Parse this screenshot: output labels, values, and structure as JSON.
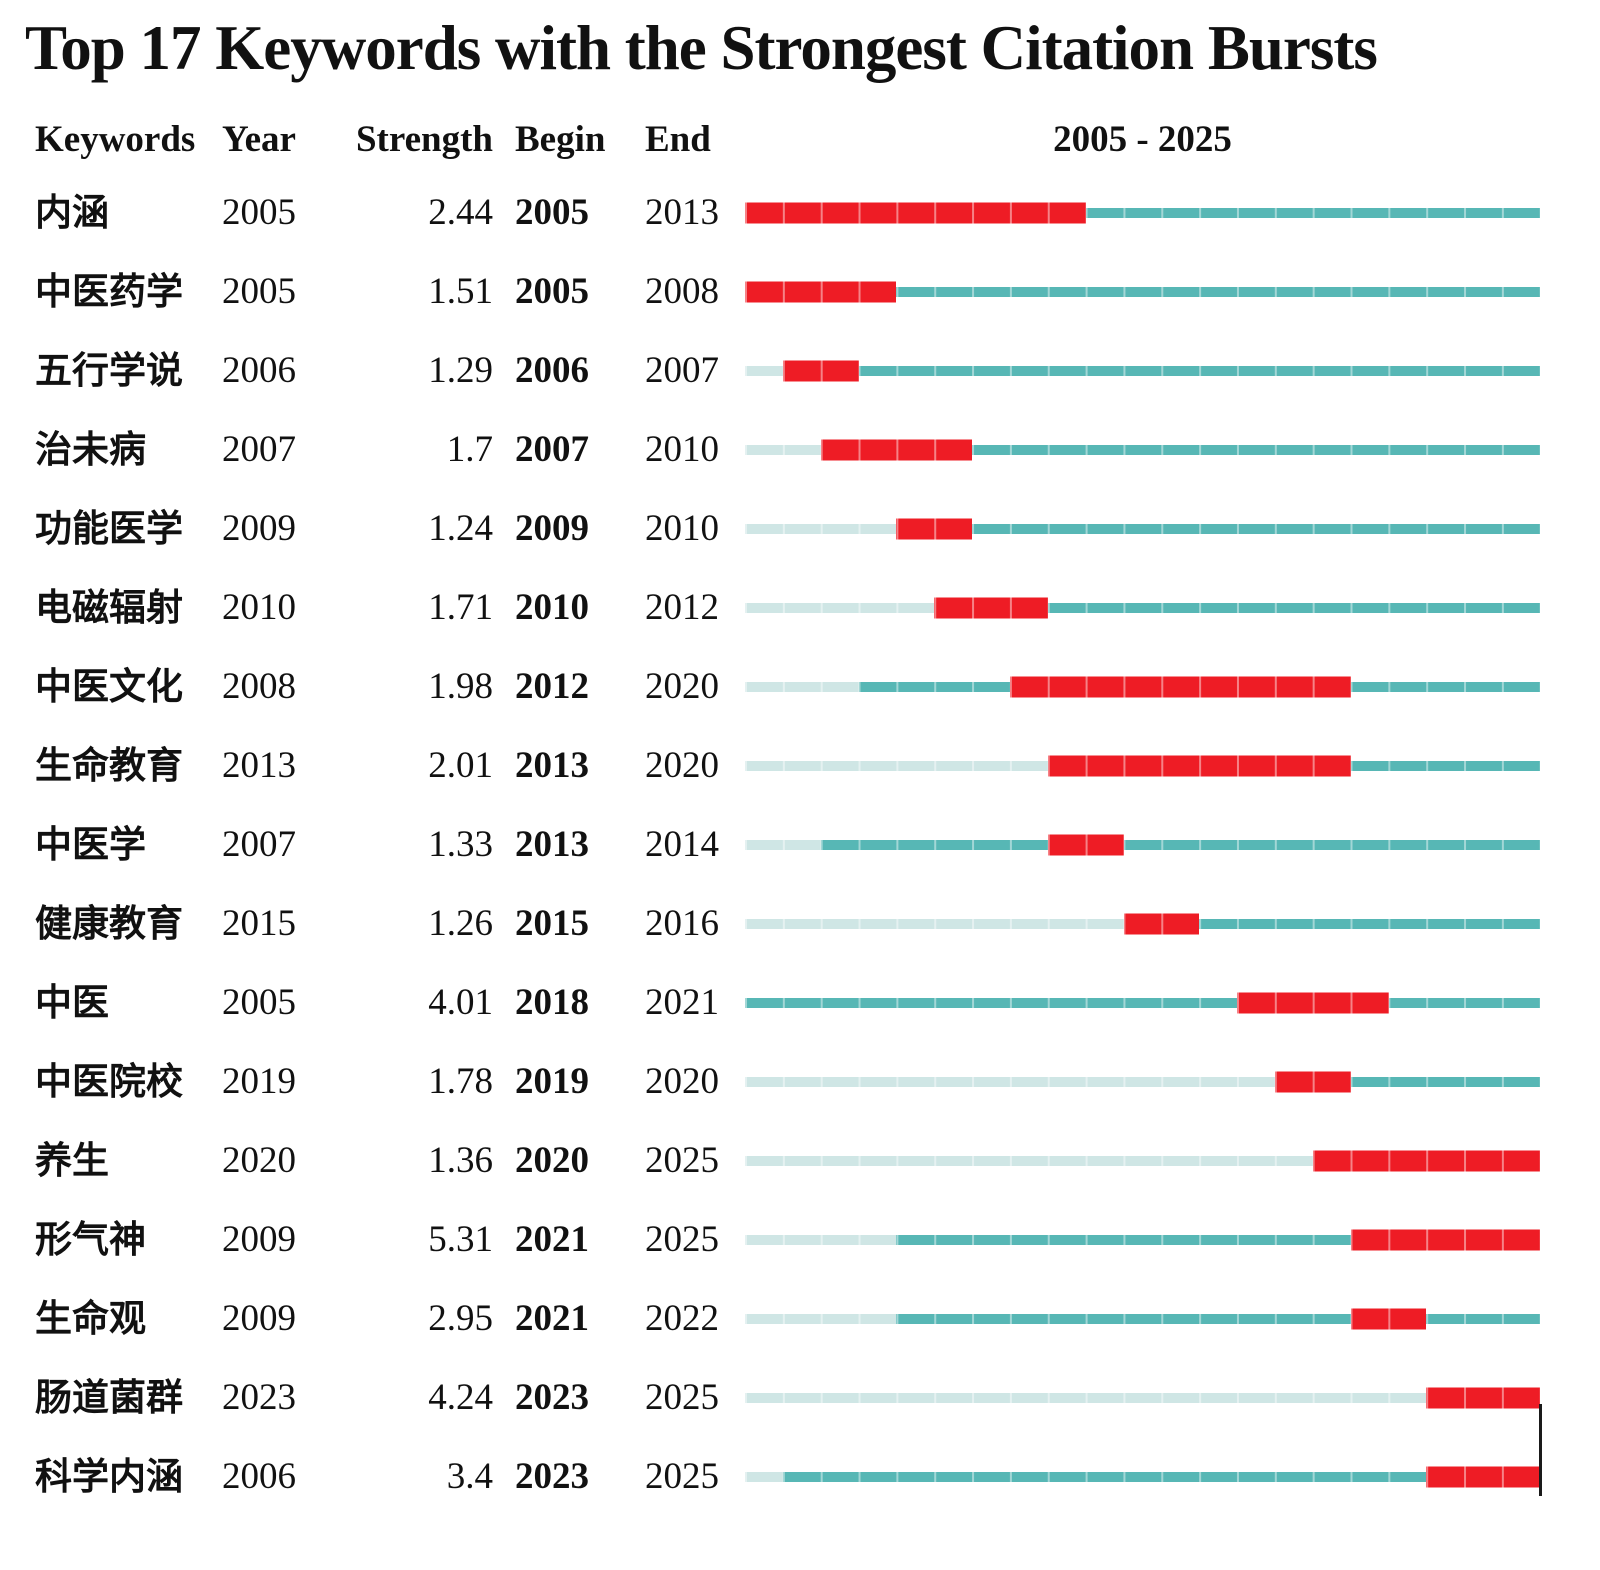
{
  "title": "Top 17 Keywords with the Strongest Citation Bursts",
  "chart_data": {
    "type": "table",
    "title": "Top 17 Keywords with the Strongest Citation Bursts",
    "columns": [
      "Keywords",
      "Year",
      "Strength",
      "Begin",
      "End",
      "2005 - 2025"
    ],
    "timeline_range": [
      2005,
      2025
    ],
    "legend": {
      "burst_segment": "citation burst interval (Begin–End)",
      "active_segment": "keyword active, no burst",
      "inactive_segment": "before first appearance year"
    },
    "colors": {
      "burst": "#ee1c25",
      "active": "#57b7b5",
      "inactive": "#cfe6e5"
    },
    "end_marker_on_last_row": true,
    "rows": [
      {
        "keyword": "内涵",
        "year": 2005,
        "strength": "2.44",
        "begin": 2005,
        "end": 2013
      },
      {
        "keyword": "中医药学",
        "year": 2005,
        "strength": "1.51",
        "begin": 2005,
        "end": 2008
      },
      {
        "keyword": "五行学说",
        "year": 2006,
        "strength": "1.29",
        "begin": 2006,
        "end": 2007
      },
      {
        "keyword": "治未病",
        "year": 2007,
        "strength": "1.7",
        "begin": 2007,
        "end": 2010
      },
      {
        "keyword": "功能医学",
        "year": 2009,
        "strength": "1.24",
        "begin": 2009,
        "end": 2010
      },
      {
        "keyword": "电磁辐射",
        "year": 2010,
        "strength": "1.71",
        "begin": 2010,
        "end": 2012
      },
      {
        "keyword": "中医文化",
        "year": 2008,
        "strength": "1.98",
        "begin": 2012,
        "end": 2020
      },
      {
        "keyword": "生命教育",
        "year": 2013,
        "strength": "2.01",
        "begin": 2013,
        "end": 2020
      },
      {
        "keyword": "中医学",
        "year": 2007,
        "strength": "1.33",
        "begin": 2013,
        "end": 2014
      },
      {
        "keyword": "健康教育",
        "year": 2015,
        "strength": "1.26",
        "begin": 2015,
        "end": 2016
      },
      {
        "keyword": "中医",
        "year": 2005,
        "strength": "4.01",
        "begin": 2018,
        "end": 2021
      },
      {
        "keyword": "中医院校",
        "year": 2019,
        "strength": "1.78",
        "begin": 2019,
        "end": 2020
      },
      {
        "keyword": "养生",
        "year": 2020,
        "strength": "1.36",
        "begin": 2020,
        "end": 2025
      },
      {
        "keyword": "形气神",
        "year": 2009,
        "strength": "5.31",
        "begin": 2021,
        "end": 2025
      },
      {
        "keyword": "生命观",
        "year": 2009,
        "strength": "2.95",
        "begin": 2021,
        "end": 2022
      },
      {
        "keyword": "肠道菌群",
        "year": 2023,
        "strength": "4.24",
        "begin": 2023,
        "end": 2025
      },
      {
        "keyword": "科学内涵",
        "year": 2006,
        "strength": "3.4",
        "begin": 2023,
        "end": 2025
      }
    ]
  }
}
